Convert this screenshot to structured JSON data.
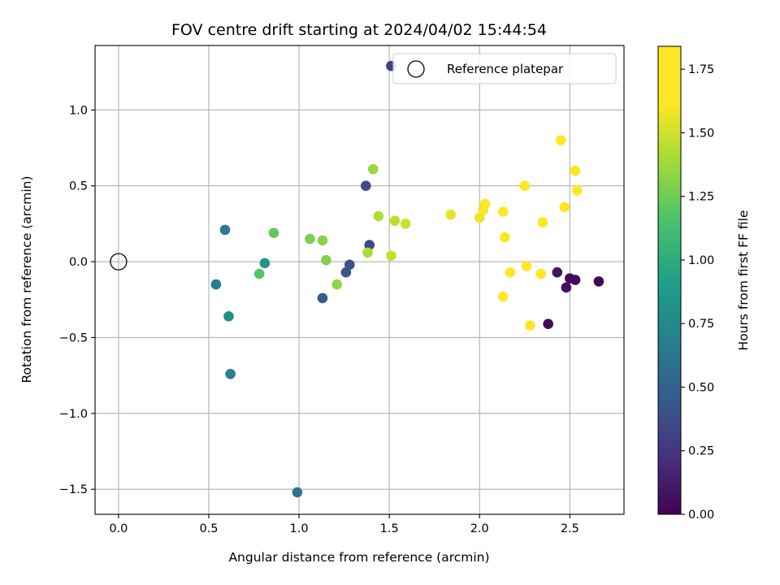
{
  "chart_data": {
    "type": "scatter",
    "title": "FOV centre drift starting at 2024/04/02 15:44:54",
    "xlabel": "Angular distance from reference (arcmin)",
    "ylabel": "Rotation from reference (arcmin)",
    "xlim": [
      -0.13,
      2.8
    ],
    "ylim": [
      -1.665,
      1.425
    ],
    "xticks": [
      0.0,
      0.5,
      1.0,
      1.5,
      2.0,
      2.5
    ],
    "xtick_labels": [
      "0.0",
      "0.5",
      "1.0",
      "1.5",
      "2.0",
      "2.5"
    ],
    "yticks": [
      -1.5,
      -1.0,
      -0.5,
      0.0,
      0.5,
      1.0
    ],
    "ytick_labels": [
      "−1.5",
      "−1.0",
      "−0.5",
      "0.0",
      "0.5",
      "1.0"
    ],
    "grid": true,
    "colormap": "viridis",
    "colorbar": {
      "label": "Hours from first FF file",
      "range": [
        0.0,
        1.84
      ],
      "ticks": [
        0.0,
        0.25,
        0.5,
        0.75,
        1.0,
        1.25,
        1.5,
        1.75
      ],
      "tick_labels": [
        "0.00",
        "0.25",
        "0.50",
        "0.75",
        "1.00",
        "1.25",
        "1.50",
        "1.75"
      ]
    },
    "legend": {
      "location": "upper right",
      "entries": [
        {
          "label": "Reference platepar",
          "marker": "open-circle"
        }
      ]
    },
    "reference_point": {
      "x": 0.0,
      "y": 0.0
    },
    "points": [
      {
        "x": 2.66,
        "y": -0.13,
        "c": 0.02
      },
      {
        "x": 2.53,
        "y": -0.12,
        "c": 0.03
      },
      {
        "x": 2.5,
        "y": -0.11,
        "c": 0.05
      },
      {
        "x": 2.48,
        "y": -0.17,
        "c": 0.06
      },
      {
        "x": 2.43,
        "y": -0.07,
        "c": 0.08
      },
      {
        "x": 2.38,
        "y": -0.41,
        "c": 0.04
      },
      {
        "x": 1.51,
        "y": 1.29,
        "c": 0.33
      },
      {
        "x": 1.39,
        "y": 0.11,
        "c": 0.36
      },
      {
        "x": 1.37,
        "y": 0.5,
        "c": 0.38
      },
      {
        "x": 1.28,
        "y": -0.02,
        "c": 0.4
      },
      {
        "x": 1.26,
        "y": -0.07,
        "c": 0.42
      },
      {
        "x": 1.13,
        "y": -0.24,
        "c": 0.45
      },
      {
        "x": 0.99,
        "y": -1.52,
        "c": 0.62
      },
      {
        "x": 0.59,
        "y": 0.21,
        "c": 0.65
      },
      {
        "x": 0.54,
        "y": -0.15,
        "c": 0.68
      },
      {
        "x": 0.62,
        "y": -0.74,
        "c": 0.71
      },
      {
        "x": 0.61,
        "y": -0.36,
        "c": 0.8
      },
      {
        "x": 0.81,
        "y": -0.01,
        "c": 0.86
      },
      {
        "x": 0.78,
        "y": -0.08,
        "c": 1.18
      },
      {
        "x": 0.86,
        "y": 0.19,
        "c": 1.22
      },
      {
        "x": 1.06,
        "y": 0.15,
        "c": 1.28
      },
      {
        "x": 1.13,
        "y": 0.14,
        "c": 1.32
      },
      {
        "x": 1.15,
        "y": 0.01,
        "c": 1.3
      },
      {
        "x": 1.21,
        "y": -0.15,
        "c": 1.34
      },
      {
        "x": 1.41,
        "y": 0.61,
        "c": 1.36
      },
      {
        "x": 1.38,
        "y": 0.06,
        "c": 1.4
      },
      {
        "x": 1.44,
        "y": 0.3,
        "c": 1.42
      },
      {
        "x": 1.53,
        "y": 0.27,
        "c": 1.45
      },
      {
        "x": 1.51,
        "y": 0.04,
        "c": 1.47
      },
      {
        "x": 1.59,
        "y": 0.25,
        "c": 1.49
      },
      {
        "x": 1.84,
        "y": 0.31,
        "c": 1.55
      },
      {
        "x": 2.0,
        "y": 0.29,
        "c": 1.57
      },
      {
        "x": 2.02,
        "y": 0.34,
        "c": 1.59
      },
      {
        "x": 2.03,
        "y": 0.38,
        "c": 1.6
      },
      {
        "x": 2.13,
        "y": 0.33,
        "c": 1.63
      },
      {
        "x": 2.14,
        "y": 0.16,
        "c": 1.64
      },
      {
        "x": 2.13,
        "y": -0.23,
        "c": 1.65
      },
      {
        "x": 2.17,
        "y": -0.07,
        "c": 1.66
      },
      {
        "x": 2.26,
        "y": -0.03,
        "c": 1.68
      },
      {
        "x": 2.28,
        "y": -0.42,
        "c": 1.69
      },
      {
        "x": 2.34,
        "y": -0.08,
        "c": 1.7
      },
      {
        "x": 2.25,
        "y": 0.5,
        "c": 1.72
      },
      {
        "x": 2.35,
        "y": 0.26,
        "c": 1.73
      },
      {
        "x": 2.47,
        "y": 0.36,
        "c": 1.76
      },
      {
        "x": 2.45,
        "y": 0.8,
        "c": 1.79
      },
      {
        "x": 2.53,
        "y": 0.6,
        "c": 1.81
      },
      {
        "x": 2.54,
        "y": 0.47,
        "c": 1.83
      }
    ]
  }
}
